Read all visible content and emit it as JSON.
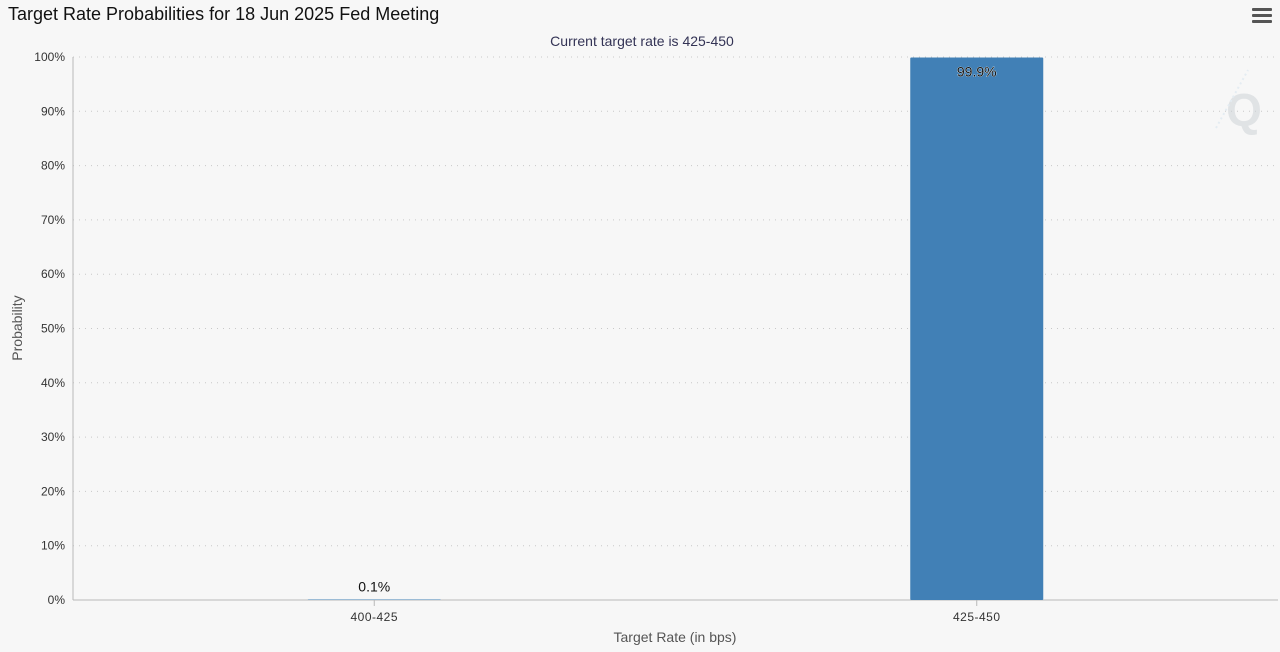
{
  "chart_data": {
    "type": "bar",
    "title": "Target Rate Probabilities for 18 Jun 2025 Fed Meeting",
    "subtitle": "Current target rate is 425-450",
    "categories": [
      "400-425",
      "425-450"
    ],
    "values": [
      0.1,
      99.9
    ],
    "data_labels": [
      "0.1%",
      "99.9%"
    ],
    "xlabel": "Target Rate (in bps)",
    "ylabel": "Probability",
    "ylim": [
      0,
      100
    ],
    "yticks": [
      0,
      10,
      20,
      30,
      40,
      50,
      60,
      70,
      80,
      90,
      100
    ],
    "ytick_suffix": "%",
    "bar_color": "#4180b6",
    "grid": true,
    "grid_style": "dotted"
  },
  "menu": {
    "icon": "hamburger-menu-icon"
  },
  "watermark": {
    "icon": "q-logo-icon",
    "glyph": "Q"
  }
}
